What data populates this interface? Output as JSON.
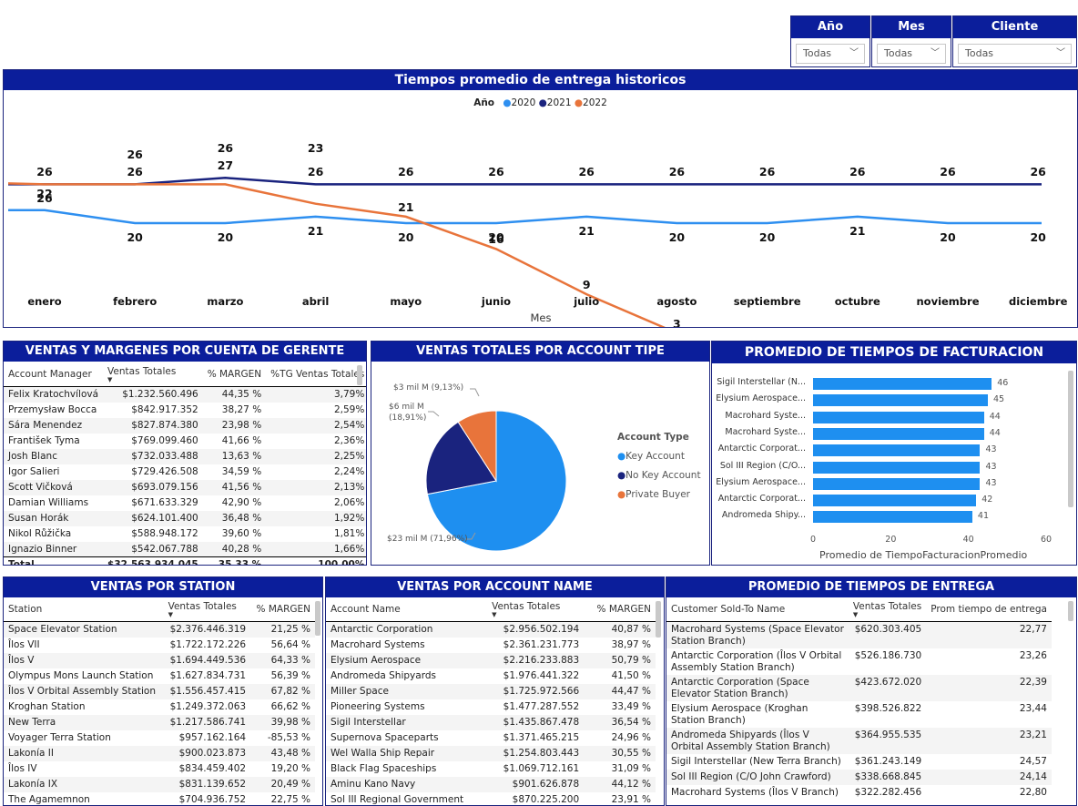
{
  "slicers": [
    {
      "title": "Año",
      "value": "Todas"
    },
    {
      "title": "Mes",
      "value": "Todas"
    },
    {
      "title": "Cliente",
      "value": "Todas"
    }
  ],
  "line_chart": {
    "title": "Tiempos promedio de entrega historicos",
    "legend_title": "Año",
    "xlabel": "Mes"
  },
  "chart_data": [
    {
      "type": "line",
      "title": "Tiempos promedio de entrega historicos",
      "xlabel": "Mes",
      "ylabel": "",
      "categories": [
        "enero",
        "febrero",
        "marzo",
        "abril",
        "mayo",
        "junio",
        "julio",
        "agosto",
        "septiembre",
        "octubre",
        "noviembre",
        "diciembre"
      ],
      "series": [
        {
          "name": "2020",
          "color": "#2e8ff0",
          "values": [
            22,
            20,
            20,
            21,
            20,
            20,
            21,
            20,
            20,
            21,
            20,
            20
          ]
        },
        {
          "name": "2021",
          "color": "#1a237e",
          "values": [
            26,
            26,
            27,
            26,
            26,
            26,
            26,
            26,
            26,
            26,
            26,
            26
          ]
        },
        {
          "name": "2022",
          "color": "#e8743b",
          "values": [
            26,
            26,
            26,
            23,
            21,
            16,
            9,
            3,
            null,
            null,
            null,
            null
          ]
        }
      ],
      "ylim": [
        0,
        30
      ]
    },
    {
      "type": "pie",
      "title": "VENTAS TOTALES POR ACCOUNT TIPE",
      "legend_title": "Account Type",
      "slices": [
        {
          "name": "Key Account",
          "value": 71.96,
          "label": "$23 mil M (71,96%)",
          "color": "#1e8ff0"
        },
        {
          "name": "No Key Account",
          "value": 18.91,
          "label_line1": "$6 mil M",
          "label_line2": "(18,91%)",
          "color": "#1a237e"
        },
        {
          "name": "Private Buyer",
          "value": 9.13,
          "label": "$3 mil M (9,13%)",
          "color": "#e8743b"
        }
      ]
    },
    {
      "type": "bar",
      "title": "PROMEDIO DE TIEMPOS DE FACTURACION",
      "xlabel": "Promedio de TiempoFacturacionPromedio",
      "categories": [
        "Sigil Interstellar (N...",
        "Elysium Aerospace...",
        "Macrohard Syste...",
        "Macrohard Syste...",
        "Antarctic Corporat...",
        "Sol III Region (C/O...",
        "Elysium Aerospace...",
        "Antarctic Corporat...",
        "Andromeda Shipy..."
      ],
      "values": [
        46,
        45,
        44,
        44,
        43,
        43,
        43,
        42,
        41
      ],
      "xticks": [
        "0",
        "20",
        "40",
        "60"
      ],
      "xlim": [
        0,
        60
      ],
      "color": "#1e8ff0"
    }
  ],
  "gerente": {
    "title": "VENTAS Y MARGENES POR CUENTA DE GERENTE",
    "headers": [
      "Account Manager",
      "Ventas Totales",
      "% MARGEN",
      "%TG Ventas Totales"
    ],
    "rows": [
      [
        "Felix Kratochvílová",
        "$1.232.560.496",
        "44,35 %",
        "3,79%"
      ],
      [
        "Przemysław Bocca",
        "$842.917.352",
        "38,27 %",
        "2,59%"
      ],
      [
        "Sára Menendez",
        "$827.874.380",
        "23,98 %",
        "2,54%"
      ],
      [
        "František Tyma",
        "$769.099.460",
        "41,66 %",
        "2,36%"
      ],
      [
        "Josh Blanc",
        "$732.033.488",
        "13,63 %",
        "2,25%"
      ],
      [
        "Igor Salieri",
        "$729.426.508",
        "34,59 %",
        "2,24%"
      ],
      [
        "Scott Vičková",
        "$693.079.156",
        "41,56 %",
        "2,13%"
      ],
      [
        "Damian Williams",
        "$671.633.329",
        "42,90 %",
        "2,06%"
      ],
      [
        "Susan Horák",
        "$624.101.400",
        "36,48 %",
        "1,92%"
      ],
      [
        "Nikol Růžička",
        "$588.948.172",
        "39,60 %",
        "1,81%"
      ],
      [
        "Ignazio Binner",
        "$542.067.788",
        "40,28 %",
        "1,66%"
      ]
    ],
    "total": [
      "Total",
      "$32.563.934.045",
      "35,33 %",
      "100,00%"
    ]
  },
  "station": {
    "title": "VENTAS POR STATION",
    "headers": [
      "Station",
      "Ventas Totales",
      "% MARGEN"
    ],
    "rows": [
      [
        "Space Elevator Station",
        "$2.376.446.319",
        "21,25 %"
      ],
      [
        "Îlos VII",
        "$1.722.172.226",
        "56,64 %"
      ],
      [
        "Îlos V",
        "$1.694.449.536",
        "64,33 %"
      ],
      [
        "Olympus Mons Launch Station",
        "$1.627.834.731",
        "56,39 %"
      ],
      [
        "Îlos V Orbital Assembly Station",
        "$1.556.457.415",
        "67,82 %"
      ],
      [
        "Kroghan Station",
        "$1.249.372.063",
        "66,62 %"
      ],
      [
        "New Terra",
        "$1.217.586.741",
        "39,98 %"
      ],
      [
        "Voyager Terra Station",
        "$957.162.164",
        "-85,53 %"
      ],
      [
        "Lakonía II",
        "$900.023.873",
        "43,48 %"
      ],
      [
        "Îlos IV",
        "$834.459.402",
        "19,20 %"
      ],
      [
        "Lakonía IX",
        "$831.139.652",
        "20,49 %"
      ],
      [
        "The Agamemnon",
        "$704.936.752",
        "22,75 %"
      ]
    ]
  },
  "account": {
    "title": "VENTAS POR ACCOUNT NAME",
    "headers": [
      "Account Name",
      "Ventas Totales",
      "% MARGEN"
    ],
    "rows": [
      [
        "Antarctic Corporation",
        "$2.956.502.194",
        "40,87 %"
      ],
      [
        "Macrohard Systems",
        "$2.361.231.773",
        "38,97 %"
      ],
      [
        "Elysium Aerospace",
        "$2.216.233.883",
        "50,79 %"
      ],
      [
        "Andromeda Shipyards",
        "$1.976.441.322",
        "41,50 %"
      ],
      [
        "Miller Space",
        "$1.725.972.566",
        "44,47 %"
      ],
      [
        "Pioneering Systems",
        "$1.477.287.552",
        "33,49 %"
      ],
      [
        "Sigil Interstellar",
        "$1.435.867.478",
        "36,54 %"
      ],
      [
        "Supernova Spaceparts",
        "$1.371.465.215",
        "24,96 %"
      ],
      [
        "Wel Walla Ship Repair",
        "$1.254.803.443",
        "30,55 %"
      ],
      [
        "Black Flag Spaceships",
        "$1.069.712.161",
        "31,09 %"
      ],
      [
        "Aminu Kano Navy",
        "$901.626.878",
        "44,12 %"
      ],
      [
        "Sol III Regional Government",
        "$870.225.200",
        "23,91 %"
      ]
    ]
  },
  "entrega": {
    "title": "PROMEDIO DE TIEMPOS DE ENTREGA",
    "headers": [
      "Customer Sold-To Name",
      "Ventas Totales",
      "Prom tiempo de entrega"
    ],
    "rows": [
      [
        "Macrohard Systems (Space Elevator",
        "Station Branch)",
        "$620.303.405",
        "22,77"
      ],
      [
        "Antarctic Corporation (Îlos V Orbital",
        "Assembly Station Branch)",
        "$526.186.730",
        "23,26"
      ],
      [
        "Antarctic Corporation (Space",
        "Elevator Station Branch)",
        "$423.672.020",
        "22,39"
      ],
      [
        "Elysium Aerospace (Kroghan",
        "Station Branch)",
        "$398.526.822",
        "23,44"
      ],
      [
        "Andromeda Shipyards (Îlos V",
        "Orbital Assembly Station Branch)",
        "$364.955.535",
        "23,21"
      ],
      [
        "Sigil Interstellar (New Terra Branch)",
        "",
        "$361.243.149",
        "24,57"
      ],
      [
        "Sol III Region (C/O John Crawford)",
        "",
        "$338.668.845",
        "24,14"
      ],
      [
        "Macrohard Systems (Îlos V Branch)",
        "",
        "$322.282.456",
        "22,80"
      ]
    ]
  }
}
